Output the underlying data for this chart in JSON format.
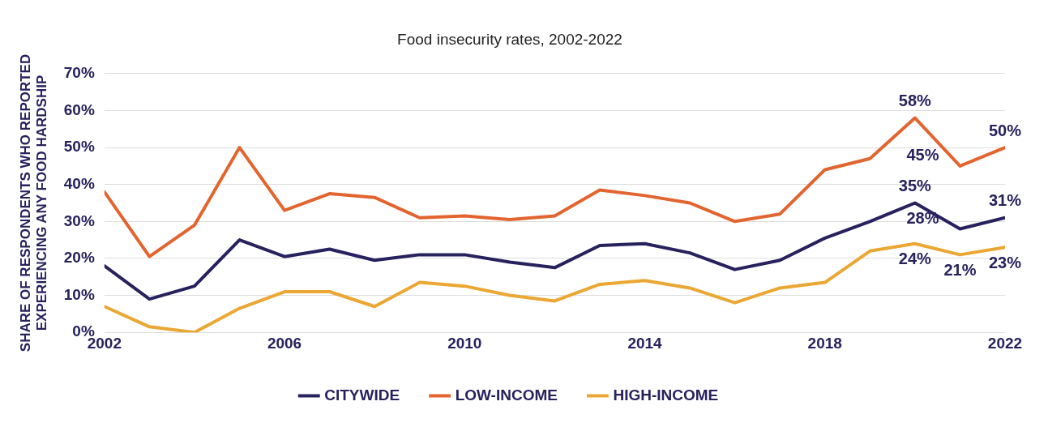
{
  "chart_data": {
    "type": "line",
    "title": "Food insecurity rates, 2002-2022",
    "ylabel": "SHARE OF RESPONDENTS WHO REPORTED EXPERIENCING ANY FOOD HARDSHIP",
    "x": [
      2002,
      2003,
      2004,
      2005,
      2006,
      2007,
      2008,
      2009,
      2010,
      2011,
      2012,
      2013,
      2014,
      2015,
      2016,
      2017,
      2018,
      2019,
      2020,
      2021,
      2022
    ],
    "series": [
      {
        "name": "CITYWIDE",
        "color": "#27215e",
        "values": [
          18,
          9,
          12.5,
          25,
          20.5,
          22.5,
          19.5,
          21,
          21,
          19,
          17.5,
          23.5,
          24,
          21.5,
          17,
          19.5,
          25.5,
          30,
          35,
          28,
          31
        ],
        "value_labels": [
          null,
          null,
          null,
          null,
          null,
          null,
          null,
          null,
          null,
          null,
          null,
          null,
          null,
          null,
          null,
          null,
          null,
          null,
          "35%",
          "28%",
          "31%"
        ]
      },
      {
        "name": "LOW-INCOME",
        "color": "#e2642f",
        "values": [
          38,
          20.5,
          29,
          50,
          33,
          37.5,
          36.5,
          31,
          31.5,
          30.5,
          31.5,
          38.5,
          37,
          35,
          30,
          32,
          44,
          47,
          58,
          45,
          50
        ],
        "value_labels": [
          null,
          null,
          null,
          null,
          null,
          null,
          null,
          null,
          null,
          null,
          null,
          null,
          null,
          null,
          null,
          null,
          null,
          null,
          "58%",
          "45%",
          "50%"
        ]
      },
      {
        "name": "HIGH-INCOME",
        "color": "#eaa733",
        "values": [
          7,
          1.5,
          0,
          6.5,
          11,
          11,
          7,
          13.5,
          12.5,
          10,
          8.5,
          13,
          14,
          12,
          8,
          12,
          13.5,
          22,
          24,
          21,
          23
        ],
        "value_labels": [
          null,
          null,
          null,
          null,
          null,
          null,
          null,
          null,
          null,
          null,
          null,
          null,
          null,
          null,
          null,
          null,
          null,
          null,
          "24%",
          "21%",
          "23%"
        ]
      }
    ],
    "xlim": [
      2002,
      2022
    ],
    "xticks": [
      2002,
      2006,
      2010,
      2014,
      2018,
      2022
    ],
    "ylim": [
      0,
      70
    ],
    "yticks": [
      {
        "value": 0,
        "label": "0%"
      },
      {
        "value": 10,
        "label": "10%"
      },
      {
        "value": 20,
        "label": "20%"
      },
      {
        "value": 30,
        "label": "30%"
      },
      {
        "value": 40,
        "label": "40%"
      },
      {
        "value": 50,
        "label": "50%"
      },
      {
        "value": 60,
        "label": "60%"
      },
      {
        "value": 70,
        "label": "70%"
      }
    ],
    "grid": "y",
    "legend": "bottom",
    "marker": "none",
    "line_style": "solid"
  }
}
